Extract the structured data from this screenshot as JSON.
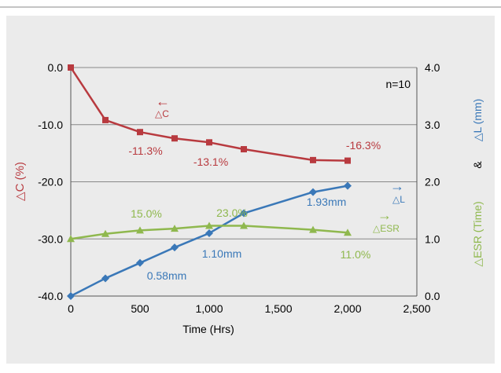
{
  "chart_data": {
    "type": "line",
    "title": "",
    "sample_note": "n=10",
    "xlabel": "Time (Hrs)",
    "xlim": [
      0,
      2500
    ],
    "x_ticks": [
      "0",
      "500",
      "1,000",
      "1,500",
      "2,000",
      "2,500"
    ],
    "y_left": {
      "label": "△C (%)",
      "lim": [
        -40,
        0
      ],
      "ticks": [
        "0.0",
        "-10.0",
        "-20.0",
        "-30.0",
        "-40.0"
      ],
      "tick_values": [
        0,
        -10,
        -20,
        -30,
        -40
      ]
    },
    "y_right": {
      "label_esr": "△ESR (Time)",
      "label_amp": "&",
      "label_l": "△L (mm)",
      "lim": [
        0,
        4
      ],
      "ticks": [
        "4.0",
        "3.0",
        "2.0",
        "1.0",
        "0.0"
      ],
      "tick_values": [
        4,
        3,
        2,
        1,
        0
      ]
    },
    "grid": "horizontal",
    "colors": {
      "c": "#b83a3f",
      "l": "#3a78b8",
      "esr": "#8fb84e",
      "grid": "#888888",
      "bg": "#ebebeb"
    },
    "series": [
      {
        "key": "c",
        "axis": "left",
        "marker": "square",
        "legend_arrow": "←",
        "legend_label": "△C",
        "x": [
          0,
          250,
          500,
          750,
          1000,
          1250,
          1750,
          2000
        ],
        "y": [
          0,
          -9.2,
          -11.3,
          -12.4,
          -13.1,
          -14.3,
          -16.2,
          -16.3
        ]
      },
      {
        "key": "l",
        "axis": "right",
        "marker": "diamond",
        "legend_arrow": "→",
        "legend_label": "△L",
        "x": [
          0,
          250,
          500,
          750,
          1000,
          1250,
          1750,
          2000
        ],
        "y": [
          0.0,
          0.31,
          0.58,
          0.85,
          1.1,
          1.45,
          1.82,
          1.93
        ]
      },
      {
        "key": "esr",
        "axis": "right",
        "marker": "triangle",
        "legend_arrow": "→",
        "legend_label": "△ESR",
        "x": [
          0,
          250,
          500,
          750,
          1000,
          1250,
          1750,
          2000
        ],
        "y": [
          1.0,
          1.09,
          1.15,
          1.18,
          1.23,
          1.23,
          1.16,
          1.11
        ]
      }
    ],
    "annotations": [
      {
        "text": "-11.3%",
        "series": "c"
      },
      {
        "text": "-13.1%",
        "series": "c"
      },
      {
        "text": "-16.3%",
        "series": "c"
      },
      {
        "text": "0.58mm",
        "series": "l"
      },
      {
        "text": "1.10mm",
        "series": "l"
      },
      {
        "text": "1.93mm",
        "series": "l"
      },
      {
        "text": "15.0%",
        "series": "esr"
      },
      {
        "text": "23.0%",
        "series": "esr"
      },
      {
        "text": "11.0%",
        "series": "esr"
      }
    ]
  }
}
